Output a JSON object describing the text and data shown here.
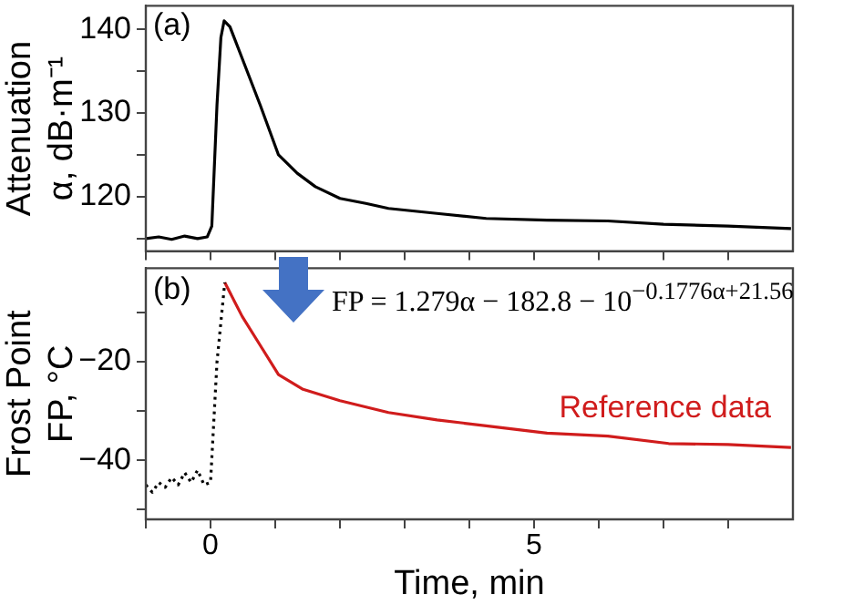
{
  "chart_data": [
    {
      "type": "line",
      "ylabel": "Attenuation\nα, dB·m⁻¹",
      "tick_labels": "y",
      "grid": false,
      "legend": false,
      "marker": "none",
      "xlim": [
        -1,
        9
      ],
      "xticks": [
        {
          "value": -1,
          "label": null
        },
        {
          "value": 0,
          "label": null
        },
        {
          "value": 1,
          "label": null
        },
        {
          "value": 2,
          "label": null
        },
        {
          "value": 3,
          "label": null
        },
        {
          "value": 4,
          "label": null
        },
        {
          "value": 5,
          "label": null
        },
        {
          "value": 6,
          "label": null
        },
        {
          "value": 7,
          "label": null
        },
        {
          "value": 8,
          "label": null
        }
      ],
      "ylim": [
        113.5,
        142.8
      ],
      "yticks": [
        {
          "value": 115,
          "label": null
        },
        120,
        {
          "value": 125,
          "label": null
        },
        130,
        {
          "value": 135,
          "label": null
        },
        140
      ],
      "annotations": [
        "(a)"
      ],
      "series": [
        {
          "color": "#000000",
          "line_style": "solid",
          "x": [
            -1,
            -0.8,
            -0.6,
            -0.4,
            -0.2,
            -0.05,
            0.02,
            0.1,
            0.16,
            0.21,
            0.3,
            0.49,
            0.77,
            1.05,
            1.34,
            1.62,
            2.0,
            2.4,
            2.75,
            3.5,
            4.26,
            5.2,
            6.14,
            7.0,
            8.0,
            8.97
          ],
          "values": [
            115.0,
            115.2,
            114.9,
            115.3,
            115.0,
            115.2,
            116.5,
            131,
            139,
            141,
            140.3,
            136.5,
            130.9,
            125.0,
            122.8,
            121.2,
            119.8,
            119.2,
            118.6,
            118.0,
            117.4,
            117.2,
            117.1,
            116.7,
            116.5,
            116.2
          ]
        }
      ]
    },
    {
      "type": "line",
      "xlabel": "Time, min",
      "ylabel": "Frost Point\nFP, °C",
      "grid": false,
      "legend": false,
      "marker": "none",
      "xlim": [
        -1,
        9
      ],
      "xticks": [
        {
          "value": -1,
          "label": null
        },
        0,
        {
          "value": 1,
          "label": null
        },
        {
          "value": 2,
          "label": null
        },
        {
          "value": 3,
          "label": null
        },
        {
          "value": 4,
          "label": null
        },
        5,
        {
          "value": 6,
          "label": null
        },
        {
          "value": 7,
          "label": null
        },
        {
          "value": 8,
          "label": null
        }
      ],
      "ylim": [
        -52,
        -1
      ],
      "yticks": [
        {
          "value": -50,
          "label": null
        },
        -40,
        {
          "value": -30,
          "label": null
        },
        -20,
        {
          "value": -10,
          "label": null
        }
      ],
      "annotations": [
        "(b)",
        "FP = 1.279α − 182.8 − 10$^{−0.1776α+21.56}$"
      ],
      "series": [
        {
          "color": "#000000",
          "line_style": "dotted",
          "x": [
            -1,
            -0.9,
            -0.8,
            -0.7,
            -0.6,
            -0.5,
            -0.4,
            -0.3,
            -0.2,
            -0.1,
            0,
            0.1,
            0.22
          ],
          "values": [
            -45,
            -46.5,
            -44.5,
            -45.5,
            -43.5,
            -45,
            -42.5,
            -44.5,
            -42,
            -45,
            -44.5,
            -20,
            -3.9
          ]
        },
        {
          "name": "Reference data",
          "color": "#d01c1c",
          "line_style": "solid",
          "x": [
            0.22,
            0.49,
            0.77,
            1.05,
            1.43,
            2.0,
            2.75,
            3.5,
            4.26,
            5.2,
            6.14,
            7.08,
            8.0,
            8.97
          ],
          "values": [
            -3.9,
            -10.8,
            -16.7,
            -22.6,
            -25.6,
            -27.9,
            -30.3,
            -31.8,
            -33.0,
            -34.5,
            -35.1,
            -36.6,
            -36.8,
            -37.4
          ]
        }
      ]
    }
  ]
}
